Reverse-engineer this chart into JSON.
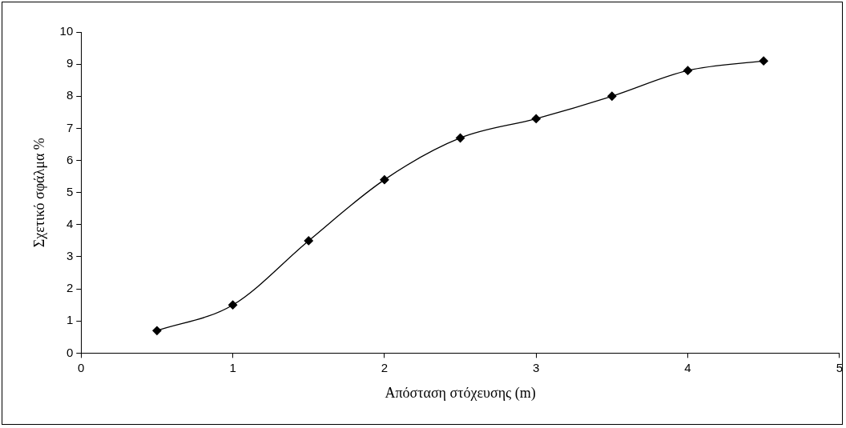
{
  "chart_data": {
    "type": "line",
    "xlabel": "Απόσταση στόχευσης (m)",
    "ylabel": "Σχετικό σφάλμα %",
    "x": [
      0.5,
      1,
      1.5,
      2,
      2.5,
      3,
      3.5,
      4,
      4.5
    ],
    "series": [
      {
        "color": "#000000",
        "values": [
          0.7,
          1.5,
          3.5,
          5.4,
          6.7,
          7.3,
          8,
          8.8,
          9.1
        ]
      }
    ],
    "xlim": [
      0,
      5
    ],
    "xticks": [
      0,
      1,
      2,
      3,
      4,
      5
    ],
    "ylim": [
      0,
      10
    ],
    "yticks": [
      0,
      1,
      2,
      3,
      4,
      5,
      6,
      7,
      8,
      9,
      10
    ],
    "grid": false,
    "legend": false,
    "marker": "diamond",
    "line_style": "solid"
  }
}
